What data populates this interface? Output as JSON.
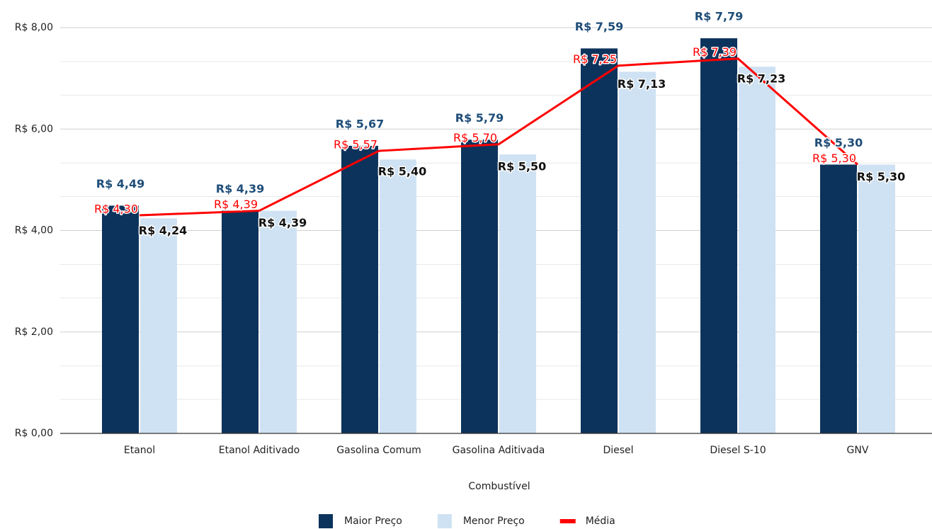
{
  "chart_data": {
    "type": "bar",
    "x_label": "Combustível",
    "categories": [
      "Etanol",
      "Etanol Aditivado",
      "Gasolina Comum",
      "Gasolina Aditivada",
      "Diesel",
      "Diesel S-10",
      "GNV"
    ],
    "series": [
      {
        "name": "Maior Preço",
        "type": "bar",
        "color": "#0c335c",
        "label_color": "#1f4e79",
        "values": [
          4.49,
          4.39,
          5.67,
          5.79,
          7.59,
          7.79,
          5.3
        ],
        "value_labels": [
          "R$ 4,49",
          "R$ 4,39",
          "R$ 5,67",
          "R$ 5,79",
          "R$ 7,59",
          "R$ 7,79",
          "R$ 5,30"
        ]
      },
      {
        "name": "Menor Preço",
        "type": "bar",
        "color": "#cfe2f3",
        "label_color": "#111111",
        "values": [
          4.24,
          4.39,
          5.4,
          5.5,
          7.13,
          7.23,
          5.3
        ],
        "value_labels": [
          "R$ 4,24",
          "R$ 4,39",
          "R$ 5,40",
          "R$ 5,50",
          "R$ 7,13",
          "R$ 7,23",
          "R$ 5,30"
        ]
      },
      {
        "name": "Média",
        "type": "line",
        "color": "#ff0000",
        "label_color": "#ff0000",
        "values": [
          4.3,
          4.39,
          5.57,
          5.7,
          7.25,
          7.39,
          5.3
        ],
        "value_labels": [
          "R$ 4,30",
          "R$ 4,39",
          "R$ 5,57",
          "R$ 5,70",
          "R$ 7,25",
          "R$ 7,39",
          "R$ 5,30"
        ]
      }
    ],
    "ylim": [
      0,
      8
    ],
    "yticks": [
      {
        "value": 0,
        "label": "R$ 0,00"
      },
      {
        "value": 2,
        "label": "R$ 2,00"
      },
      {
        "value": 4,
        "label": "R$ 4,00"
      },
      {
        "value": 6,
        "label": "R$ 6,00"
      },
      {
        "value": 8,
        "label": "R$ 8,00"
      }
    ],
    "minor_yticks": [
      0.67,
      1.33,
      2.67,
      3.33,
      4.67,
      5.33,
      6.67,
      7.33
    ],
    "grid": true,
    "legend": "bottom"
  }
}
